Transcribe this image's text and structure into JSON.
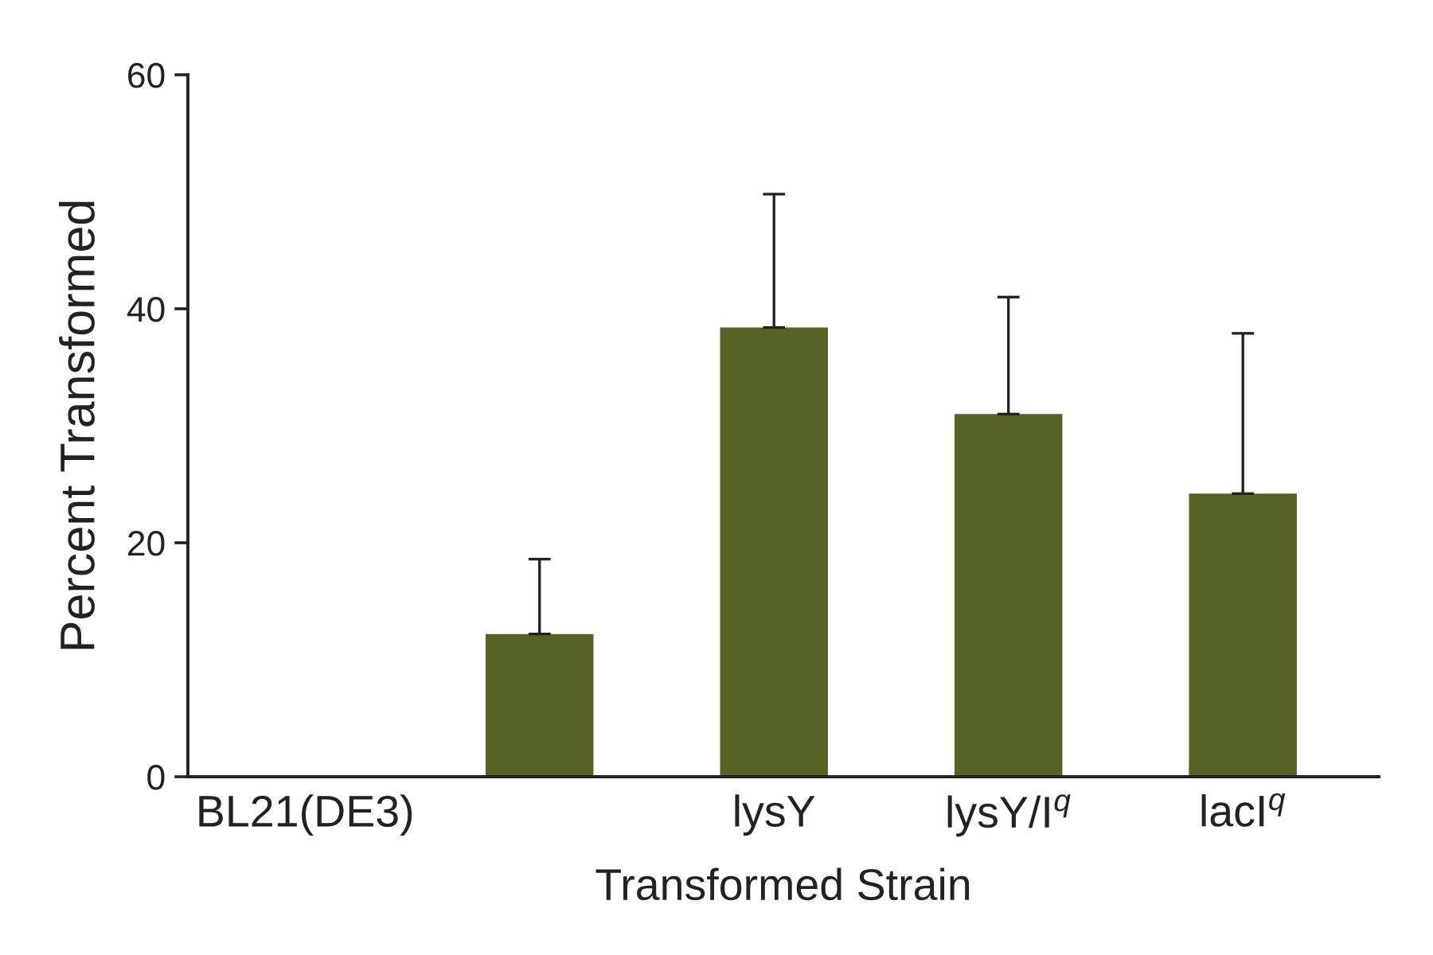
{
  "chart_data": {
    "type": "bar",
    "xlabel": "Transformed Strain",
    "ylabel": "Percent Transformed",
    "categories": [
      "BL21(DE3)",
      null,
      "lysY",
      "lysY/I$^{q}$",
      "lacI$^{q}$"
    ],
    "values": [
      0,
      12.2,
      38.4,
      31,
      24.2
    ],
    "color": "#576324",
    "errors": [
      null,
      [
        12.2,
        18.6
      ],
      [
        38.4,
        49.8
      ],
      [
        31,
        41
      ],
      [
        24.2,
        37.9
      ]
    ],
    "ylim": [
      0,
      60
    ],
    "yticks": [
      0,
      20,
      40,
      60
    ]
  }
}
